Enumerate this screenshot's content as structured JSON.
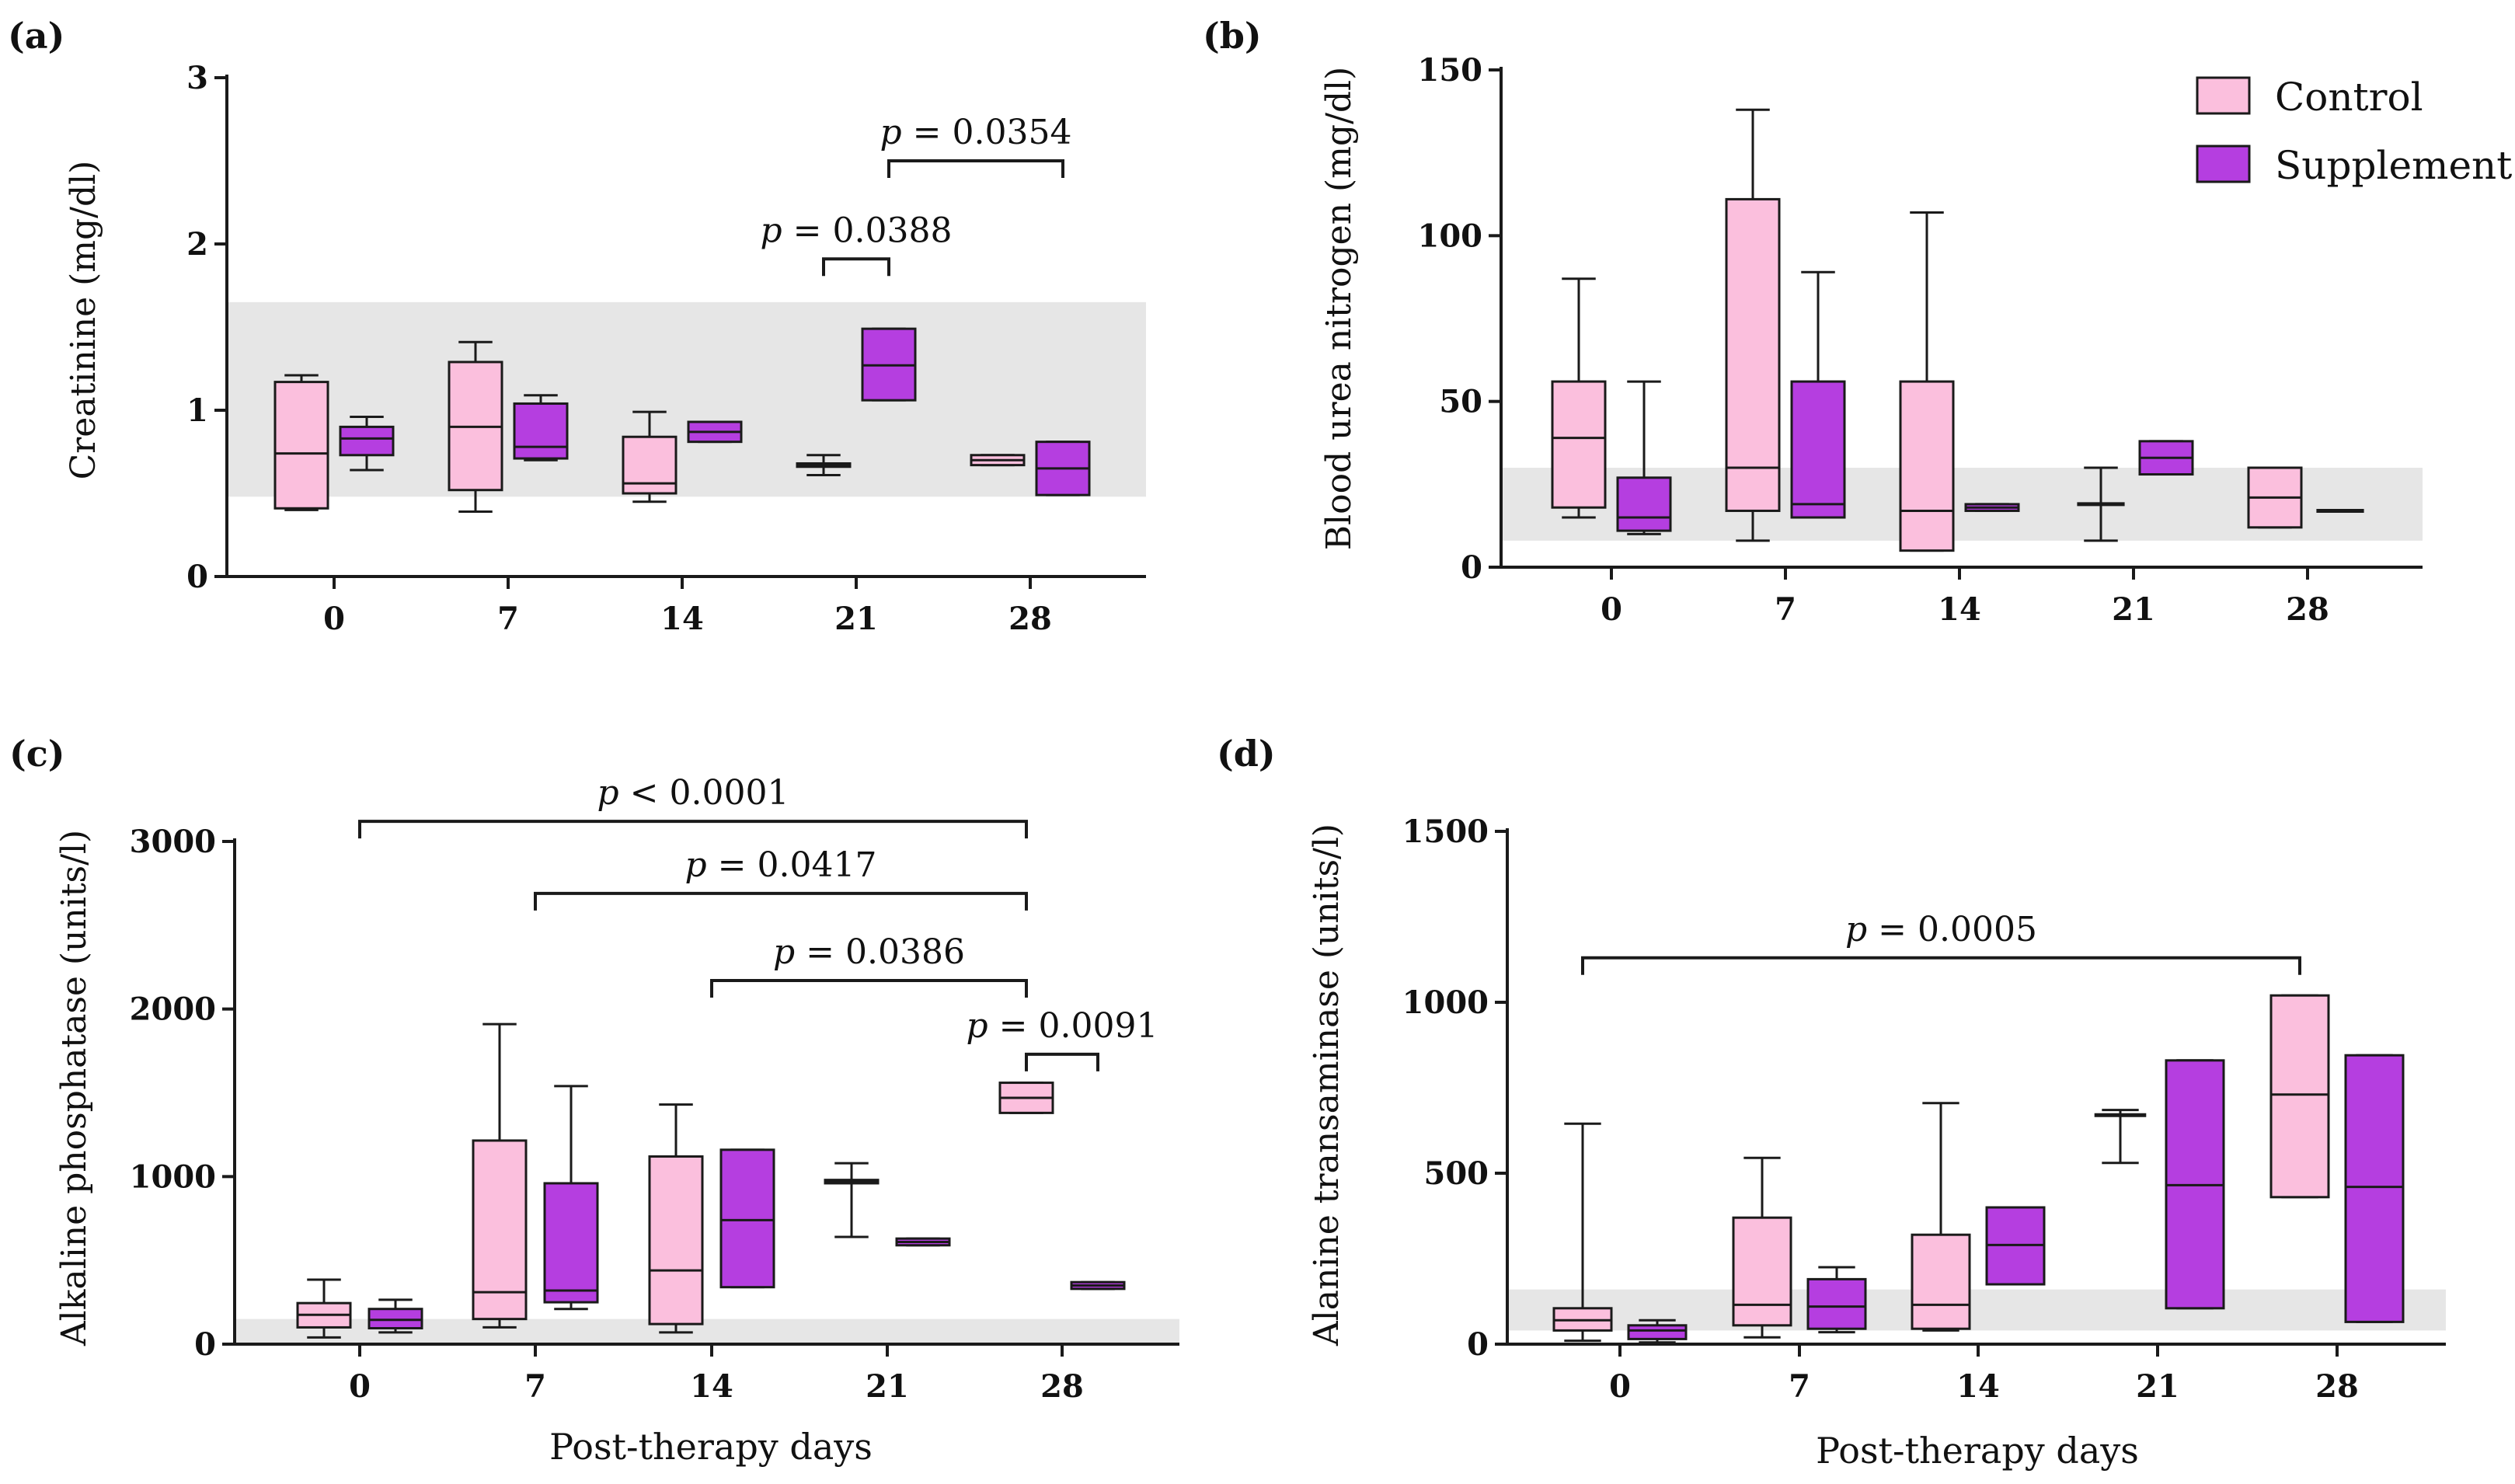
{
  "legend": {
    "control_label": "Control",
    "supplement_label": "Supplement"
  },
  "colors": {
    "control": "#fbbfdd",
    "supplement": "#b53ee0",
    "reference": "#e6e6e6",
    "stroke": "#1a1a1a"
  },
  "shared_xlabel": "Post-therapy days",
  "chart_data": [
    {
      "type": "box",
      "panel": "(a)",
      "ylabel": "Creatinine (mg/dl)",
      "xlabel": "",
      "categories": [
        "0",
        "7",
        "14",
        "21",
        "28"
      ],
      "ylim": [
        0,
        3
      ],
      "yticks": [
        "0",
        "1",
        "2",
        "3"
      ],
      "reference_range": [
        0.48,
        1.65
      ],
      "series": [
        {
          "name": "Control",
          "boxes": [
            {
              "min": 0.4,
              "q1": 0.41,
              "median": 0.74,
              "q3": 1.17,
              "max": 1.21
            },
            {
              "min": 0.39,
              "q1": 0.52,
              "median": 0.9,
              "q3": 1.29,
              "max": 1.41
            },
            {
              "min": 0.45,
              "q1": 0.5,
              "median": 0.56,
              "q3": 0.84,
              "max": 0.99
            },
            {
              "min": 0.61,
              "q1": 0.66,
              "median": 0.67,
              "q3": 0.68,
              "max": 0.73
            },
            {
              "min": 0.67,
              "q1": 0.67,
              "median": 0.7,
              "q3": 0.73,
              "max": 0.73
            }
          ]
        },
        {
          "name": "Supplement",
          "boxes": [
            {
              "min": 0.64,
              "q1": 0.73,
              "median": 0.83,
              "q3": 0.9,
              "max": 0.96
            },
            {
              "min": 0.7,
              "q1": 0.71,
              "median": 0.78,
              "q3": 1.04,
              "max": 1.09
            },
            {
              "min": 0.81,
              "q1": 0.81,
              "median": 0.87,
              "q3": 0.93,
              "max": 0.93
            },
            {
              "min": 1.06,
              "q1": 1.06,
              "median": 1.27,
              "q3": 1.49,
              "max": 1.49
            },
            {
              "min": 0.49,
              "q1": 0.49,
              "median": 0.65,
              "q3": 0.81,
              "max": 0.81
            }
          ]
        }
      ],
      "annotations": [
        {
          "label": "p = 0.0388",
          "from": {
            "cat": "21",
            "series": "Control"
          },
          "to": {
            "cat": "21",
            "series": "Supplement"
          },
          "y": 1.91
        },
        {
          "label": "p = 0.0354",
          "from": {
            "cat": "21",
            "series": "Supplement"
          },
          "to": {
            "cat": "28",
            "series": "Supplement"
          },
          "y": 2.5
        }
      ]
    },
    {
      "type": "box",
      "panel": "(b)",
      "ylabel": "Blood urea nitrogen (mg/dl)",
      "xlabel": "",
      "categories": [
        "0",
        "7",
        "14",
        "21",
        "28"
      ],
      "ylim": [
        0,
        150
      ],
      "yticks": [
        "0",
        "50",
        "100",
        "150"
      ],
      "reference_range": [
        8,
        30
      ],
      "series": [
        {
          "name": "Control",
          "boxes": [
            {
              "min": 15,
              "q1": 18,
              "median": 39,
              "q3": 56,
              "max": 87
            },
            {
              "min": 8,
              "q1": 17,
              "median": 30,
              "q3": 111,
              "max": 138
            },
            {
              "min": 5,
              "q1": 5,
              "median": 17,
              "q3": 56,
              "max": 107
            },
            {
              "min": 8,
              "q1": 19,
              "median": 19,
              "q3": 19,
              "max": 30
            },
            {
              "min": 12,
              "q1": 12,
              "median": 21,
              "q3": 30,
              "max": 30
            }
          ]
        },
        {
          "name": "Supplement",
          "boxes": [
            {
              "min": 10,
              "q1": 11,
              "median": 15,
              "q3": 27,
              "max": 56
            },
            {
              "min": 15,
              "q1": 15,
              "median": 19,
              "q3": 56,
              "max": 89
            },
            {
              "min": 17,
              "q1": 17,
              "median": 18,
              "q3": 19,
              "max": 19
            },
            {
              "min": 28,
              "q1": 28,
              "median": 33,
              "q3": 38,
              "max": 38
            },
            {
              "min": 17,
              "q1": 17,
              "median": 17,
              "q3": 17,
              "max": 17
            }
          ]
        }
      ],
      "annotations": []
    },
    {
      "type": "box",
      "panel": "(c)",
      "ylabel": "Alkaline phosphatase (units/l)",
      "xlabel": "Post-therapy days",
      "categories": [
        "0",
        "7",
        "14",
        "21",
        "28"
      ],
      "ylim": [
        0,
        3000
      ],
      "yticks": [
        "0",
        "1000",
        "2000",
        "3000"
      ],
      "reference_range": [
        0,
        150
      ],
      "series": [
        {
          "name": "Control",
          "boxes": [
            {
              "min": 40,
              "q1": 100,
              "median": 175,
              "q3": 245,
              "max": 385
            },
            {
              "min": 100,
              "q1": 150,
              "median": 310,
              "q3": 1215,
              "max": 1910
            },
            {
              "min": 70,
              "q1": 120,
              "median": 440,
              "q3": 1120,
              "max": 1430
            },
            {
              "min": 640,
              "q1": 960,
              "median": 970,
              "q3": 980,
              "max": 1080
            },
            {
              "min": 1380,
              "q1": 1380,
              "median": 1470,
              "q3": 1560,
              "max": 1560
            }
          ]
        },
        {
          "name": "Supplement",
          "boxes": [
            {
              "min": 70,
              "q1": 95,
              "median": 145,
              "q3": 210,
              "max": 265
            },
            {
              "min": 210,
              "q1": 250,
              "median": 320,
              "q3": 960,
              "max": 1540
            },
            {
              "min": 340,
              "q1": 340,
              "median": 740,
              "q3": 1160,
              "max": 1160
            },
            {
              "min": 590,
              "q1": 590,
              "median": 610,
              "q3": 630,
              "max": 630
            },
            {
              "min": 330,
              "q1": 330,
              "median": 350,
              "q3": 370,
              "max": 370
            }
          ]
        }
      ],
      "annotations": [
        {
          "label": "p < 0.0001",
          "from": {
            "cat": "0",
            "series": "Center"
          },
          "to": {
            "cat": "28",
            "series": "Control"
          },
          "y": 3120
        },
        {
          "label": "p = 0.0417",
          "from": {
            "cat": "7",
            "series": "Center"
          },
          "to": {
            "cat": "28",
            "series": "Control"
          },
          "y": 2690
        },
        {
          "label": "p = 0.0386",
          "from": {
            "cat": "14",
            "series": "Center"
          },
          "to": {
            "cat": "28",
            "series": "Control"
          },
          "y": 2170
        },
        {
          "label": "p = 0.0091",
          "from": {
            "cat": "28",
            "series": "Control"
          },
          "to": {
            "cat": "28",
            "series": "Supplement"
          },
          "y": 1730
        }
      ]
    },
    {
      "type": "box",
      "panel": "(d)",
      "ylabel": "Alanine transaminase (units/l)",
      "xlabel": "Post-therapy days",
      "categories": [
        "0",
        "7",
        "14",
        "21",
        "28"
      ],
      "ylim": [
        0,
        1500
      ],
      "yticks": [
        "0",
        "500",
        "1000",
        "1500"
      ],
      "reference_range": [
        40,
        160
      ],
      "series": [
        {
          "name": "Control",
          "boxes": [
            {
              "min": 10,
              "q1": 40,
              "median": 70,
              "q3": 105,
              "max": 645
            },
            {
              "min": 20,
              "q1": 55,
              "median": 115,
              "q3": 370,
              "max": 545
            },
            {
              "min": 40,
              "q1": 45,
              "median": 115,
              "q3": 320,
              "max": 705
            },
            {
              "min": 530,
              "q1": 670,
              "median": 670,
              "q3": 670,
              "max": 685
            },
            {
              "min": 430,
              "q1": 430,
              "median": 730,
              "q3": 1020,
              "max": 1020
            }
          ]
        },
        {
          "name": "Supplement",
          "boxes": [
            {
              "min": 5,
              "q1": 15,
              "median": 40,
              "q3": 55,
              "max": 70
            },
            {
              "min": 35,
              "q1": 45,
              "median": 110,
              "q3": 190,
              "max": 225
            },
            {
              "min": 175,
              "q1": 175,
              "median": 290,
              "q3": 400,
              "max": 400
            },
            {
              "min": 105,
              "q1": 105,
              "median": 465,
              "q3": 830,
              "max": 830
            },
            {
              "min": 65,
              "q1": 65,
              "median": 460,
              "q3": 845,
              "max": 845
            }
          ]
        }
      ],
      "annotations": [
        {
          "label": "p = 0.0005",
          "from": {
            "cat": "0",
            "series": "Control"
          },
          "to": {
            "cat": "28",
            "series": "Control"
          },
          "y": 1130
        }
      ]
    }
  ]
}
